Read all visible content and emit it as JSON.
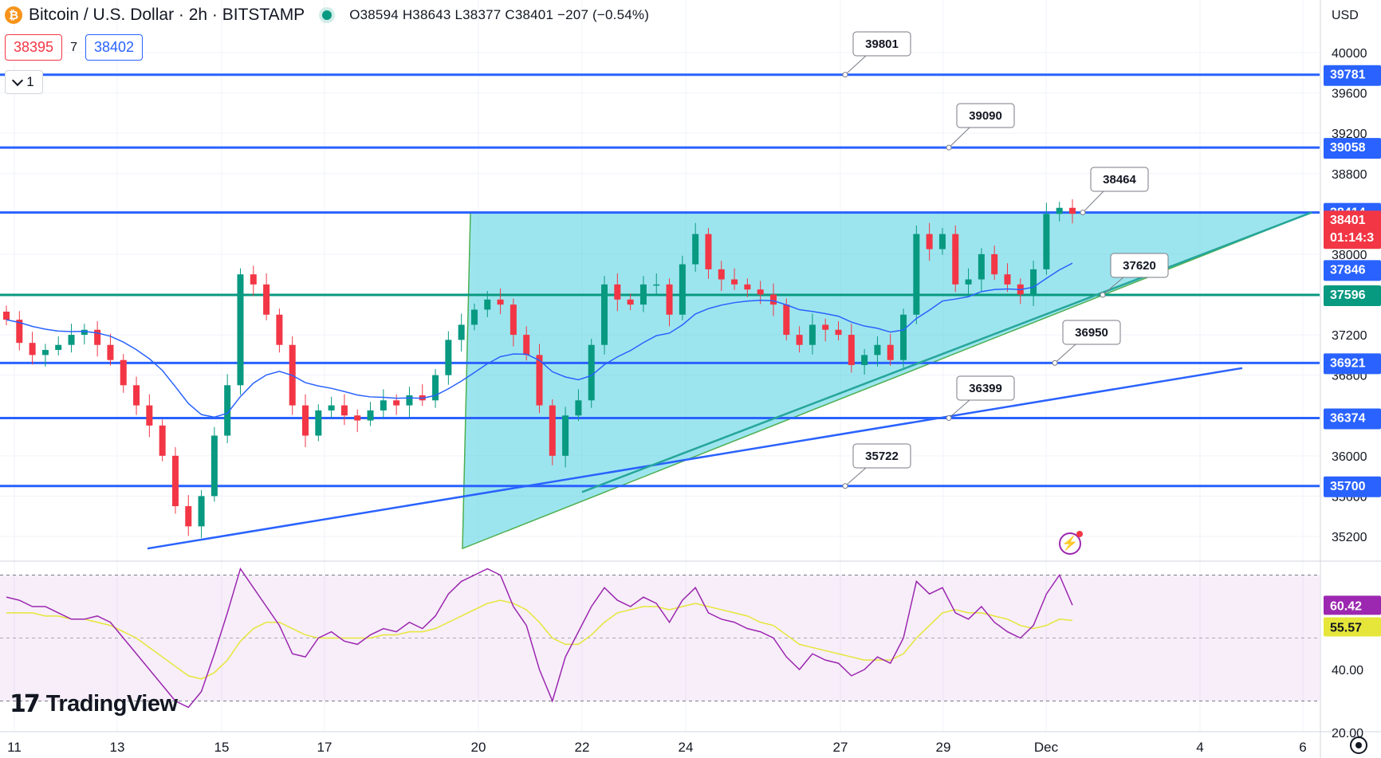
{
  "header": {
    "title": "Bitcoin / U.S. Dollar · 2h · BITSTAMP",
    "ohlc": "O38594 H38643 L38377 C38401 −207 (−0.54%)",
    "bid": "38395",
    "spread": "7",
    "ask": "38402",
    "indicator_count": "1",
    "currency": "USD"
  },
  "branding": {
    "logo_text": "TradingView"
  },
  "colors": {
    "blue_line": "#2962ff",
    "teal_line": "#089981",
    "triangle_fill": "#26c6da",
    "price_red": "#f23645",
    "rsi": "#9c27b0",
    "rsi_ma": "#e6e63a"
  },
  "chart_data": [
    {
      "type": "line",
      "panel": "price",
      "y_axis_ticks": [
        40000,
        39600,
        39200,
        38800,
        38000,
        37200,
        36800,
        36000,
        35600,
        35200
      ],
      "ylim": [
        34800,
        40500
      ],
      "x_tick_labels": [
        "11",
        "13",
        "15",
        "17",
        "20",
        "22",
        "24",
        "27",
        "29",
        "Dec",
        "4",
        "6"
      ],
      "horizontal_levels": [
        {
          "value": 39781,
          "axis_label": "39781",
          "callout": "39801",
          "color": "#2962ff"
        },
        {
          "value": 39058,
          "axis_label": "39058",
          "callout": "39090",
          "color": "#2962ff"
        },
        {
          "value": 38414,
          "axis_label": "38414",
          "callout": "38464",
          "color": "#2962ff"
        },
        {
          "value": 37596,
          "axis_label": "37596",
          "callout": "37620",
          "color": "#089981"
        },
        {
          "value": 36921,
          "axis_label": "36921",
          "callout": "36950",
          "color": "#2962ff"
        },
        {
          "value": 36374,
          "axis_label": "36374",
          "callout": "36399",
          "color": "#2962ff"
        },
        {
          "value": 35700,
          "axis_label": "35700",
          "callout": "35722",
          "color": "#2962ff"
        }
      ],
      "last_price": {
        "value": 38401,
        "label": "38401",
        "countdown": "01:14:3"
      },
      "moving_average_label": "37846",
      "close_series": [
        37350,
        37120,
        37000,
        37050,
        37100,
        37200,
        37250,
        37100,
        36950,
        36700,
        36500,
        36300,
        36000,
        35500,
        35300,
        35600,
        36200,
        36700,
        37800,
        37700,
        37400,
        37100,
        36500,
        36200,
        36450,
        36500,
        36400,
        36350,
        36450,
        36550,
        36500,
        36600,
        36550,
        36800,
        37150,
        37300,
        37450,
        37550,
        37500,
        37200,
        37000,
        36500,
        36000,
        36400,
        36550,
        37100,
        37700,
        37550,
        37500,
        37700,
        37700,
        37400,
        37900,
        38200,
        37850,
        37750,
        37700,
        37650,
        37600,
        37500,
        37200,
        37100,
        37300,
        37250,
        37200,
        36900,
        37000,
        37100,
        36950,
        37400,
        38200,
        38050,
        38200,
        37700,
        37750,
        38000,
        37800,
        37700,
        37600,
        37850,
        38400,
        38460,
        38401
      ]
    },
    {
      "type": "line",
      "panel": "rsi",
      "y_axis_ticks": [
        40.0,
        20.0
      ],
      "ylim": [
        15,
        85
      ],
      "rsi_label": "60.42",
      "rsi_ma_label": "55.57",
      "rsi": [
        63,
        62,
        60,
        60,
        58,
        56,
        56,
        57,
        55,
        50,
        45,
        40,
        35,
        30,
        28,
        33,
        45,
        58,
        72,
        66,
        60,
        54,
        45,
        44,
        50,
        52,
        49,
        48,
        51,
        53,
        52,
        55,
        53,
        57,
        64,
        68,
        70,
        72,
        70,
        60,
        54,
        40,
        30,
        44,
        52,
        60,
        66,
        62,
        60,
        63,
        61,
        55,
        62,
        66,
        58,
        56,
        55,
        53,
        52,
        50,
        44,
        40,
        45,
        43,
        42,
        38,
        40,
        44,
        42,
        50,
        68,
        64,
        66,
        58,
        56,
        60,
        55,
        52,
        50,
        54,
        64,
        70,
        60.42
      ],
      "rsi_ma": [
        58,
        58,
        58,
        57,
        57,
        56,
        56,
        55,
        54,
        52,
        50,
        47,
        44,
        41,
        38,
        37,
        39,
        43,
        49,
        53,
        55,
        55,
        53,
        51,
        50,
        50,
        50,
        50,
        50,
        51,
        51,
        52,
        52,
        53,
        55,
        57,
        59,
        61,
        62,
        61,
        59,
        55,
        50,
        48,
        48,
        51,
        55,
        58,
        59,
        60,
        60,
        59,
        60,
        61,
        60,
        59,
        58,
        57,
        55,
        54,
        51,
        48,
        47,
        46,
        45,
        44,
        43,
        43,
        43,
        45,
        50,
        54,
        58,
        59,
        58,
        58,
        57,
        56,
        54,
        53,
        54,
        56,
        55.57
      ]
    }
  ]
}
